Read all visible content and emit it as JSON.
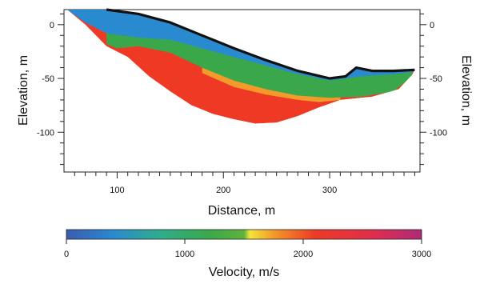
{
  "chart_data": {
    "type": "heatmap",
    "title": "",
    "xlabel": "Distance, m",
    "ylabel_left": "Elevation, m",
    "ylabel_right": "Elevation, m",
    "xlim": [
      50,
      385
    ],
    "ylim": [
      -137,
      14
    ],
    "x_ticks": [
      100,
      200,
      300
    ],
    "y_ticks": [
      0,
      -50,
      -100
    ],
    "colorbar": {
      "label": "Velocity, m/s",
      "range": [
        0,
        3000
      ],
      "ticks": [
        0,
        1000,
        2000,
        3000
      ],
      "stops": [
        {
          "value": 0,
          "color": "#3a5bb0"
        },
        {
          "value": 400,
          "color": "#2a8ad0"
        },
        {
          "value": 800,
          "color": "#2fae8a"
        },
        {
          "value": 1200,
          "color": "#3aa84a"
        },
        {
          "value": 1500,
          "color": "#5db33a"
        },
        {
          "value": 1550,
          "color": "#f3e63a"
        },
        {
          "value": 1750,
          "color": "#f39a2a"
        },
        {
          "value": 2100,
          "color": "#ee3a25"
        },
        {
          "value": 2600,
          "color": "#e02d4e"
        },
        {
          "value": 3000,
          "color": "#b02a7a"
        }
      ]
    },
    "topography": [
      {
        "x": 90,
        "y": 14
      },
      {
        "x": 120,
        "y": 10
      },
      {
        "x": 150,
        "y": 2
      },
      {
        "x": 180,
        "y": -10
      },
      {
        "x": 210,
        "y": -22
      },
      {
        "x": 240,
        "y": -33
      },
      {
        "x": 270,
        "y": -43
      },
      {
        "x": 300,
        "y": -50
      },
      {
        "x": 315,
        "y": -48
      },
      {
        "x": 325,
        "y": -40
      },
      {
        "x": 340,
        "y": -43
      },
      {
        "x": 360,
        "y": -43
      },
      {
        "x": 380,
        "y": -42
      }
    ],
    "model_bottom": [
      {
        "x": 53,
        "y": 14
      },
      {
        "x": 70,
        "y": 0
      },
      {
        "x": 90,
        "y": -20
      },
      {
        "x": 110,
        "y": -30
      },
      {
        "x": 130,
        "y": -48
      },
      {
        "x": 150,
        "y": -62
      },
      {
        "x": 170,
        "y": -75
      },
      {
        "x": 190,
        "y": -83
      },
      {
        "x": 210,
        "y": -88
      },
      {
        "x": 230,
        "y": -92
      },
      {
        "x": 250,
        "y": -91
      },
      {
        "x": 270,
        "y": -85
      },
      {
        "x": 290,
        "y": -77
      },
      {
        "x": 310,
        "y": -70
      },
      {
        "x": 340,
        "y": -67
      },
      {
        "x": 365,
        "y": -60
      },
      {
        "x": 378,
        "y": -46
      }
    ],
    "velocity_layers": [
      {
        "velocity": 600,
        "top": [
          {
            "x": 53,
            "y": 14
          },
          {
            "x": 200,
            "y": 14
          }
        ],
        "bottom": [
          {
            "x": 53,
            "y": 14
          },
          {
            "x": 70,
            "y": 2
          },
          {
            "x": 90,
            "y": -8
          },
          {
            "x": 120,
            "y": -12
          },
          {
            "x": 150,
            "y": -14
          },
          {
            "x": 180,
            "y": -22
          },
          {
            "x": 210,
            "y": -30
          },
          {
            "x": 240,
            "y": -38
          },
          {
            "x": 270,
            "y": -46
          },
          {
            "x": 300,
            "y": -52
          },
          {
            "x": 330,
            "y": -48
          },
          {
            "x": 360,
            "y": -46
          },
          {
            "x": 378,
            "y": -44
          }
        ]
      },
      {
        "velocity": 1300,
        "bottom": [
          {
            "x": 90,
            "y": -18
          },
          {
            "x": 100,
            "y": -22
          },
          {
            "x": 120,
            "y": -20
          },
          {
            "x": 150,
            "y": -26
          },
          {
            "x": 180,
            "y": -40
          },
          {
            "x": 210,
            "y": -52
          },
          {
            "x": 240,
            "y": -60
          },
          {
            "x": 270,
            "y": -66
          },
          {
            "x": 300,
            "y": -68
          },
          {
            "x": 330,
            "y": -67
          },
          {
            "x": 360,
            "y": -62
          },
          {
            "x": 378,
            "y": -48
          }
        ]
      },
      {
        "velocity": 1750,
        "bottom": [
          {
            "x": 180,
            "y": -45
          },
          {
            "x": 210,
            "y": -58
          },
          {
            "x": 240,
            "y": -65
          },
          {
            "x": 270,
            "y": -70
          },
          {
            "x": 290,
            "y": -72
          },
          {
            "x": 310,
            "y": -70
          }
        ]
      },
      {
        "velocity": 2300,
        "bottom": "model_bottom"
      }
    ]
  },
  "colors": {
    "frame": "#222222",
    "background": "#ffffff",
    "topography_line": "#111111"
  }
}
